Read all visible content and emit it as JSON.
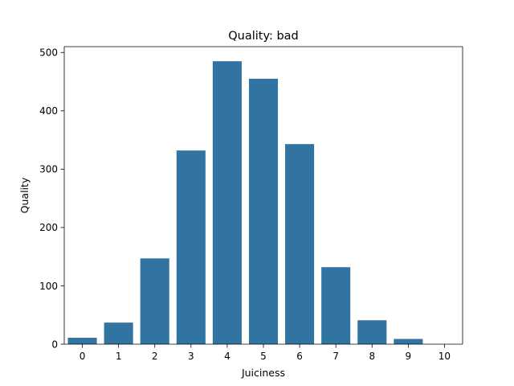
{
  "chart_data": {
    "type": "bar",
    "title": "Quality: bad",
    "xlabel": "Juiciness",
    "ylabel": "Quality",
    "categories": [
      "0",
      "1",
      "2",
      "3",
      "4",
      "5",
      "6",
      "7",
      "8",
      "9",
      "10"
    ],
    "values": [
      11,
      37,
      147,
      332,
      485,
      455,
      343,
      132,
      41,
      9,
      0
    ],
    "ylim": [
      0,
      510
    ],
    "yticks": [
      "0",
      "100",
      "200",
      "300",
      "400",
      "500"
    ],
    "bar_color": "#3274a1",
    "grid": false
  }
}
